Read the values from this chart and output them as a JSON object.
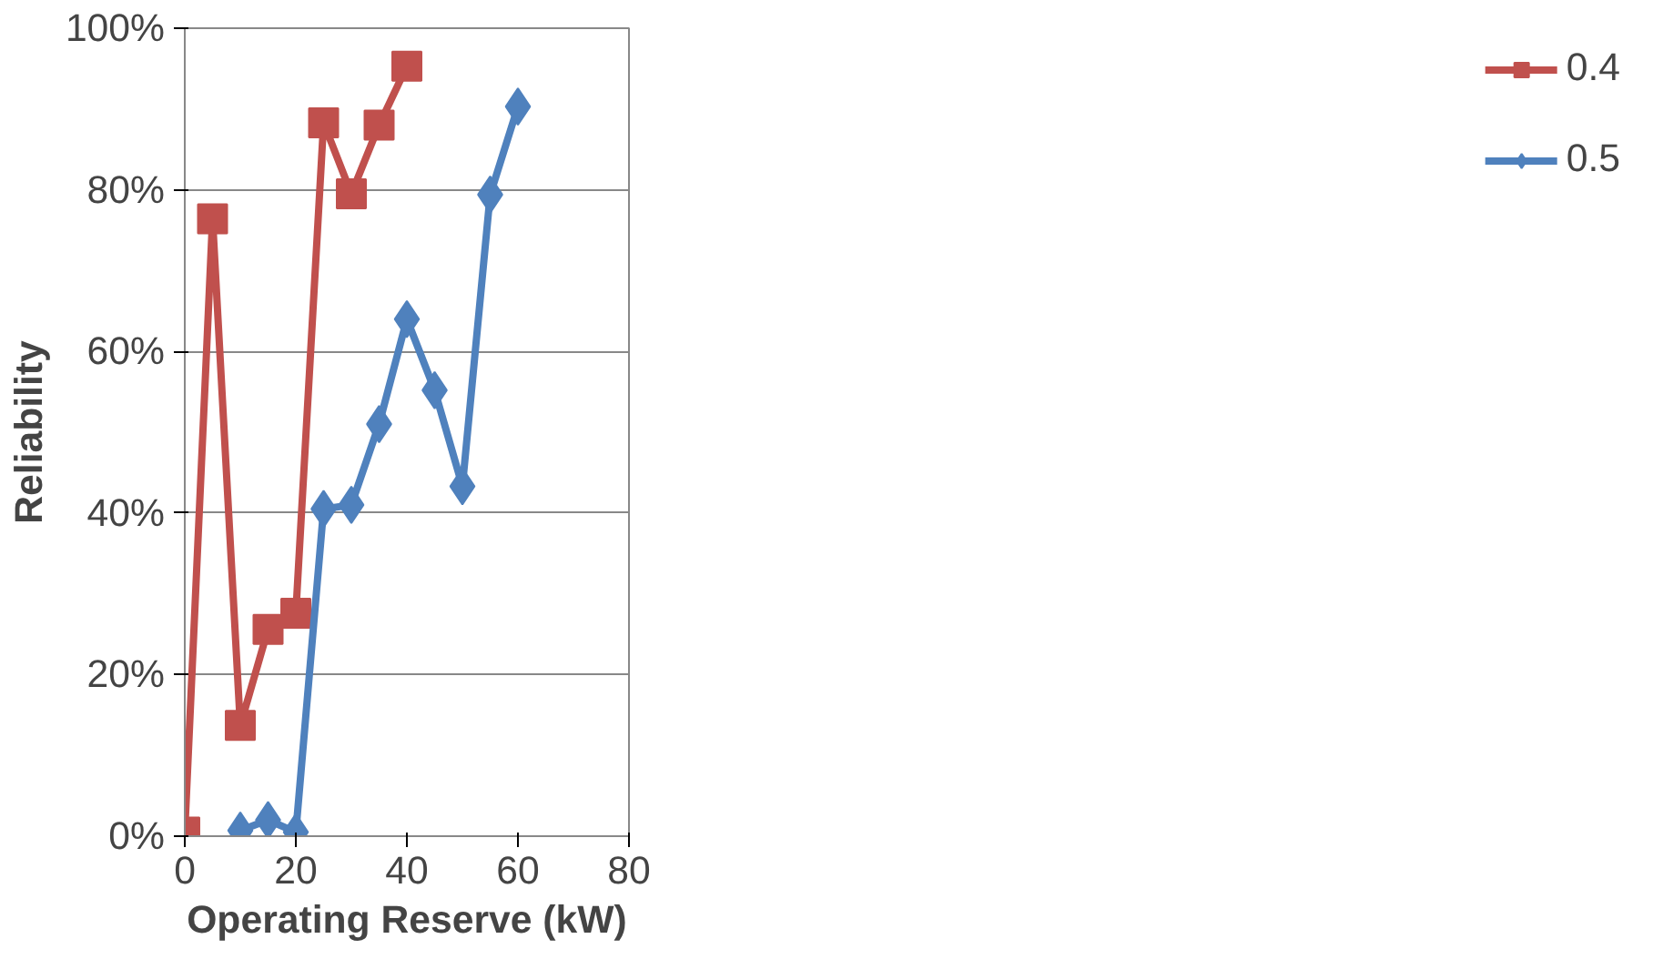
{
  "chart_data": {
    "type": "line",
    "xlabel": "Operating Reserve (kW)",
    "ylabel": "Reliability",
    "xlim": [
      0,
      80
    ],
    "xticks": [
      0,
      20,
      40,
      60,
      80
    ],
    "ylim": [
      0,
      100
    ],
    "yticks": [
      {
        "value": 0,
        "label": "0%"
      },
      {
        "value": 20,
        "label": "20%"
      },
      {
        "value": 40,
        "label": "40%"
      },
      {
        "value": 60,
        "label": "60%"
      },
      {
        "value": 80,
        "label": "80%"
      },
      {
        "value": 100,
        "label": "100%"
      }
    ],
    "grid": "y",
    "legend": "right",
    "series": [
      {
        "name": "0.4",
        "color": "#c0504d",
        "marker": "square",
        "x": [
          0,
          5,
          10,
          15,
          20,
          25,
          30,
          35,
          40
        ],
        "values": [
          0.5,
          76.4,
          13.7,
          25.6,
          27.6,
          88.3,
          79.5,
          88,
          95.3
        ]
      },
      {
        "name": "0.5",
        "color": "#4f81bd",
        "marker": "diamond",
        "x": [
          10,
          15,
          20,
          25,
          30,
          35,
          40,
          45,
          50,
          55,
          60
        ],
        "values": [
          0.7,
          2,
          0.5,
          40.5,
          41,
          51,
          64,
          55.2,
          43.3,
          79.4,
          90.3
        ]
      }
    ]
  }
}
